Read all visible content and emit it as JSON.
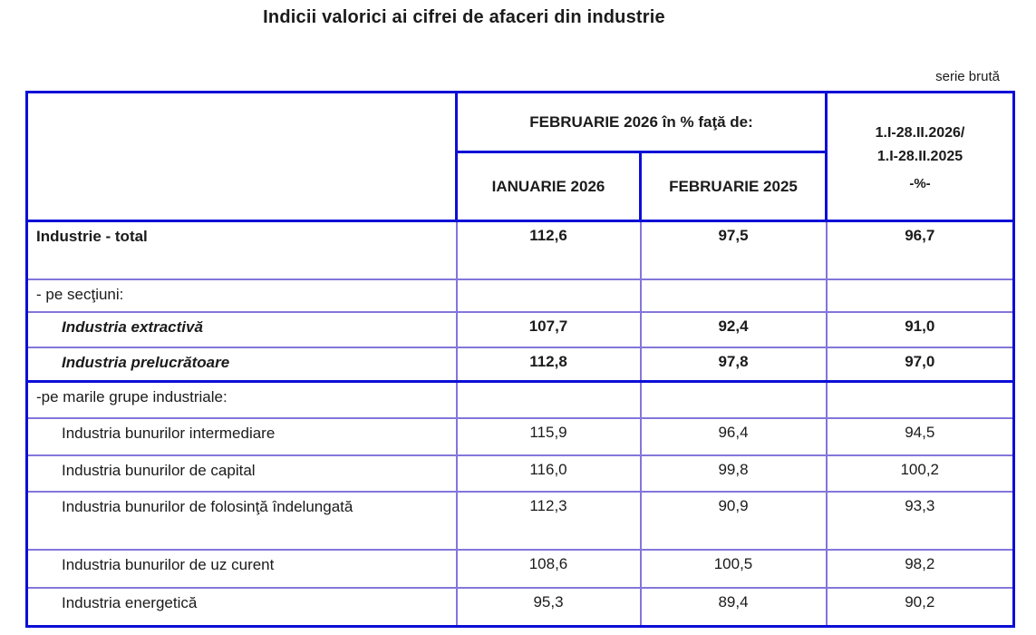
{
  "page": {
    "title": "Indicii valorici ai cifrei de afaceri din industrie",
    "series_note": "serie brută"
  },
  "colors": {
    "border_strong": "#0d0ed6",
    "border_inner": "#8376db",
    "border_inner_light": "#6ba3e5",
    "text": "#1b1b1b",
    "background": "#ffffff"
  },
  "table": {
    "header": {
      "group_label": "FEBRUARIE 2026 în % faţă de:",
      "col_ianuarie": "IANUARIE 2026",
      "col_februarie": "FEBRUARIE 2025",
      "period_line1": "1.I-28.II.2026/",
      "period_line2": "1.I-28.II.2025",
      "period_unit": "-%-"
    },
    "rows": [
      {
        "label": "Industrie - total",
        "v1": "112,6",
        "v2": "97,5",
        "v3": "96,7"
      },
      {
        "label": "- pe secţiuni:",
        "v1": "",
        "v2": "",
        "v3": ""
      },
      {
        "label": "Industria extractivă",
        "v1": "107,7",
        "v2": "92,4",
        "v3": "91,0"
      },
      {
        "label": "Industria prelucrătoare",
        "v1": "112,8",
        "v2": "97,8",
        "v3": "97,0"
      },
      {
        "label": "-pe marile grupe industriale:",
        "v1": "",
        "v2": "",
        "v3": ""
      },
      {
        "label": "Industria bunurilor intermediare",
        "v1": "115,9",
        "v2": "96,4",
        "v3": "94,5"
      },
      {
        "label": "Industria bunurilor de capital",
        "v1": "116,0",
        "v2": "99,8",
        "v3": "100,2"
      },
      {
        "label": "Industria bunurilor de folosinţă îndelungată",
        "v1": "112,3",
        "v2": "90,9",
        "v3": "93,3"
      },
      {
        "label": "Industria bunurilor de uz curent",
        "v1": "108,6",
        "v2": "100,5",
        "v3": "98,2"
      },
      {
        "label": "Industria energetică",
        "v1": "95,3",
        "v2": "89,4",
        "v3": "90,2"
      }
    ]
  }
}
